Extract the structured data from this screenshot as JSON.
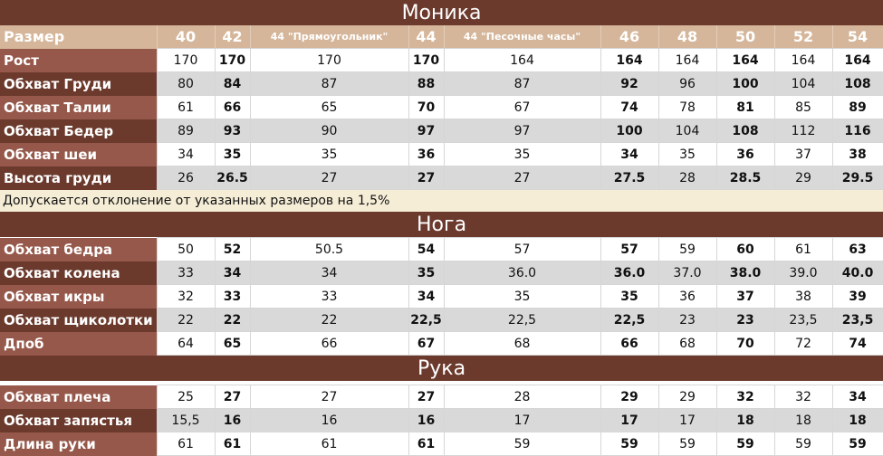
{
  "sections": {
    "monika": "Моника",
    "noga": "Нога",
    "ruka": "Рука"
  },
  "header": {
    "label": "Размер",
    "sizes": [
      "40",
      "42",
      "44 \"Прямоугольник\"",
      "44",
      "44 \"Песочные часы\"",
      "46",
      "48",
      "50",
      "52",
      "54"
    ]
  },
  "note": "Допускается отклонение от указанных размеров на 1,5%",
  "rows": {
    "rost": {
      "label": "Рост",
      "values": [
        "170",
        "170",
        "170",
        "170",
        "164",
        "164",
        "164",
        "164",
        "164",
        "164"
      ]
    },
    "grud": {
      "label": "Обхват Груди",
      "values": [
        "80",
        "84",
        "87",
        "88",
        "87",
        "92",
        "96",
        "100",
        "104",
        "108"
      ]
    },
    "talia": {
      "label": "Обхват Талии",
      "values": [
        "61",
        "66",
        "65",
        "70",
        "67",
        "74",
        "78",
        "81",
        "85",
        "89"
      ]
    },
    "bedra": {
      "label": "Обхват Бедер",
      "values": [
        "89",
        "93",
        "90",
        "97",
        "97",
        "100",
        "104",
        "108",
        "112",
        "116"
      ]
    },
    "shea": {
      "label": "Обхват шеи",
      "values": [
        "34",
        "35",
        "35",
        "36",
        "35",
        "34",
        "35",
        "36",
        "37",
        "38"
      ]
    },
    "vysota": {
      "label": "Высота груди",
      "values": [
        "26",
        "26.5",
        "27",
        "27",
        "27",
        "27.5",
        "28",
        "28.5",
        "29",
        "29.5"
      ]
    },
    "bedro": {
      "label": "Обхват бедра",
      "values": [
        "50",
        "52",
        "50.5",
        "54",
        "57",
        "57",
        "59",
        "60",
        "61",
        "63"
      ]
    },
    "koleno": {
      "label": "Обхват колена",
      "values": [
        "33",
        "34",
        "34",
        "35",
        "36.0",
        "36.0",
        "37.0",
        "38.0",
        "39.0",
        "40.0"
      ]
    },
    "ikra": {
      "label": "Обхват икры",
      "values": [
        "32",
        "33",
        "33",
        "34",
        "35",
        "35",
        "36",
        "37",
        "38",
        "39"
      ]
    },
    "shikolotka": {
      "label": "Обхват щиколотки",
      "values": [
        "22",
        "22",
        "22",
        "22,5",
        "22,5",
        "22,5",
        "23",
        "23",
        "23,5",
        "23,5"
      ]
    },
    "dpob": {
      "label": "Дпоб",
      "values": [
        "64",
        "65",
        "66",
        "67",
        "68",
        "66",
        "68",
        "70",
        "72",
        "74"
      ]
    },
    "plecho": {
      "label": "Обхват плеча",
      "values": [
        "25",
        "27",
        "27",
        "27",
        "28",
        "29",
        "29",
        "32",
        "32",
        "34"
      ]
    },
    "zapyastye": {
      "label": "Обхват запястья",
      "values": [
        "15,5",
        "16",
        "16",
        "16",
        "17",
        "17",
        "17",
        "18",
        "18",
        "18"
      ]
    },
    "dlina_ruki": {
      "label": "Длина руки",
      "values": [
        "61",
        "61",
        "61",
        "61",
        "59",
        "59",
        "59",
        "59",
        "59",
        "59"
      ]
    }
  },
  "colors": {
    "section_bg": "#6b3a2d",
    "label_light": "#96584a",
    "label_dark": "#6b3a2d",
    "header_bg": "#d5b69a",
    "row_grey": "#d9d9d9",
    "note_bg": "#f5edd6"
  }
}
